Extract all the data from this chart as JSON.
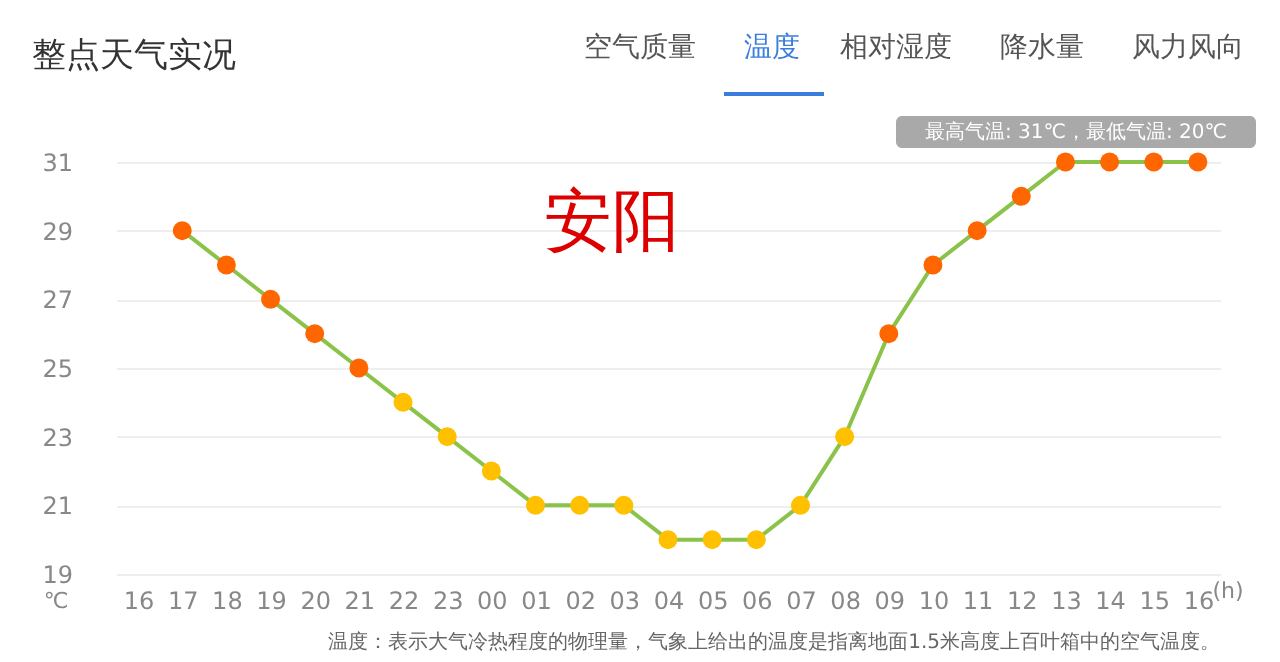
{
  "chart_data": {
    "type": "line",
    "title": "整点天气实况",
    "xlabel": "(h)",
    "ylabel": "℃",
    "categories": [
      "16",
      "17",
      "18",
      "19",
      "20",
      "21",
      "22",
      "23",
      "00",
      "01",
      "02",
      "03",
      "04",
      "05",
      "06",
      "07",
      "08",
      "09",
      "10",
      "11",
      "12",
      "13",
      "14",
      "15",
      "16"
    ],
    "series": [
      {
        "color": "#8bc34a",
        "values": [
          null,
          29,
          28,
          27,
          26,
          25,
          24,
          23,
          22,
          21,
          21,
          21,
          20,
          20,
          20,
          21,
          23,
          26,
          28,
          29,
          30,
          31,
          31,
          31,
          31
        ],
        "colors": [
          null,
          "#ff6600",
          "#ff6600",
          "#ff6600",
          "#ff6600",
          "#ff6600",
          "#ffc000",
          "#ffc000",
          "#ffc000",
          "#ffc000",
          "#ffc000",
          "#ffc000",
          "#ffc000",
          "#ffc000",
          "#ffc000",
          "#ffc000",
          "#ffc000",
          "#ff6600",
          "#ff6600",
          "#ff6600",
          "#ff6600",
          "#ff6600",
          "#ff6600",
          "#ff6600",
          "#ff6600"
        ]
      }
    ],
    "ylim": [
      19,
      31
    ],
    "yticks": [
      19,
      21,
      23,
      25,
      27,
      29,
      31
    ],
    "grid": "y",
    "marker": "circle",
    "annotations": [
      "空气质量",
      "温度",
      "相对湿度",
      "降水量",
      "风力风向",
      "安阳",
      "最高气温: 31℃，最低气温: 20℃",
      "温度：表示大气冷热程度的物理量，气象上给出的温度是指离地面1.5米高度上百叶箱中的空气温度。"
    ]
  }
}
